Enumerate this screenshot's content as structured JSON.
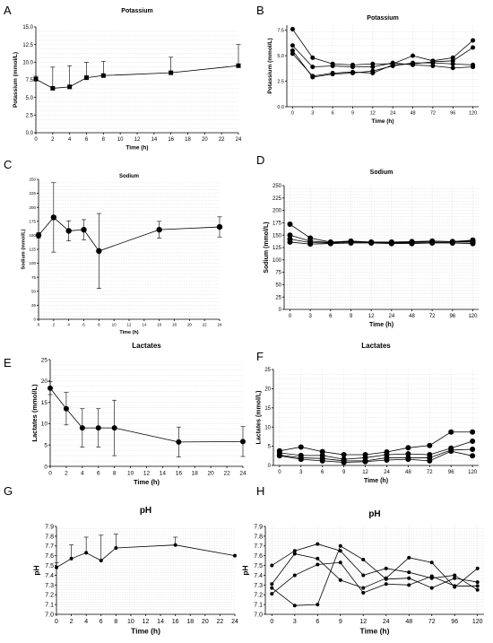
{
  "chart_data": [
    {
      "id": "A",
      "letter": "A",
      "type": "line",
      "title": "Potassium",
      "xlabel": "Time (h)",
      "ylabel": "Potassium (mmol/L)",
      "x_scale": "linear",
      "xlim": [
        0,
        24
      ],
      "x_ticks": [
        "0",
        "2",
        "4",
        "6",
        "8",
        "10",
        "12",
        "14",
        "16",
        "18",
        "20",
        "22",
        "24"
      ],
      "ylim": [
        0,
        15
      ],
      "y_ticks": [
        "0.0",
        "2.5",
        "5.0",
        "7.5",
        "10.0",
        "12.5",
        "15.0"
      ],
      "marker": "square",
      "grid": true,
      "series": [
        {
          "x": [
            0,
            2,
            4,
            6,
            8,
            16,
            24
          ],
          "y": [
            7.6,
            6.3,
            6.5,
            7.8,
            8.1,
            8.5,
            9.5
          ],
          "err": [
            0.4,
            3.0,
            3.0,
            2.2,
            2.0,
            2.2,
            3.0
          ]
        }
      ]
    },
    {
      "id": "B",
      "letter": "B",
      "type": "line",
      "title": "Potassium",
      "xlabel": "Time (h)",
      "ylabel": "Potassium (mmol/L)",
      "x_scale": "categorical",
      "categories": [
        "0",
        "3",
        "6",
        "9",
        "12",
        "24",
        "48",
        "72",
        "96",
        "120"
      ],
      "ylim": [
        0,
        8
      ],
      "y_ticks": [
        "0.0",
        "2.5",
        "5.0",
        "7.5"
      ],
      "marker": "circle",
      "grid": true,
      "series": [
        {
          "values": [
            7.6,
            4.8,
            4.2,
            4.1,
            4.2,
            4.2,
            5.0,
            4.5,
            4.8,
            6.5
          ]
        },
        {
          "values": [
            6.0,
            3.9,
            4.0,
            3.9,
            3.9,
            4.3,
            4.1,
            4.0,
            3.8,
            3.9
          ]
        },
        {
          "values": [
            5.5,
            2.9,
            3.2,
            3.3,
            3.5,
            4.0,
            4.3,
            4.3,
            4.2,
            4.1
          ]
        },
        {
          "values": [
            5.2,
            3.0,
            3.3,
            3.4,
            3.3,
            4.1,
            4.2,
            4.4,
            4.5,
            5.8
          ]
        }
      ]
    },
    {
      "id": "C",
      "letter": "C",
      "type": "line",
      "title": "Sodium",
      "xlabel": "Time (h)",
      "ylabel": "Sodium (mmol/L)",
      "x_scale": "linear",
      "xlim": [
        0,
        24
      ],
      "x_ticks": [
        "0",
        "2",
        "4",
        "6",
        "8",
        "10",
        "12",
        "14",
        "16",
        "18",
        "20",
        "22",
        "24"
      ],
      "ylim": [
        0,
        250
      ],
      "y_ticks": [
        "0",
        "25",
        "50",
        "75",
        "100",
        "125",
        "150",
        "175",
        "200",
        "225",
        "250"
      ],
      "marker": "circle",
      "grid": true,
      "series": [
        {
          "x": [
            0,
            2,
            4,
            6,
            8,
            16,
            24
          ],
          "y": [
            150,
            182,
            158,
            160,
            122,
            160,
            165
          ],
          "err": [
            5,
            62,
            18,
            18,
            67,
            15,
            18
          ]
        }
      ]
    },
    {
      "id": "D",
      "letter": "D",
      "type": "line",
      "title": "Sodium",
      "xlabel": "Time (h)",
      "ylabel": "Sodium (mmol/L)",
      "x_scale": "categorical",
      "categories": [
        "0",
        "3",
        "6",
        "9",
        "12",
        "24",
        "48",
        "72",
        "96",
        "120"
      ],
      "ylim": [
        0,
        250
      ],
      "y_ticks": [
        "0",
        "25",
        "50",
        "75",
        "100",
        "125",
        "150",
        "175",
        "200",
        "225",
        "250"
      ],
      "marker": "circle",
      "grid": true,
      "series": [
        {
          "values": [
            172,
            144,
            136,
            138,
            136,
            136,
            137,
            138,
            137,
            140
          ]
        },
        {
          "values": [
            150,
            138,
            135,
            137,
            135,
            135,
            136,
            137,
            137,
            138
          ]
        },
        {
          "values": [
            142,
            135,
            134,
            136,
            135,
            134,
            135,
            135,
            136,
            136
          ]
        },
        {
          "values": [
            136,
            132,
            133,
            134,
            134,
            133,
            133,
            134,
            134,
            133
          ]
        }
      ]
    },
    {
      "id": "E",
      "letter": "E",
      "type": "line",
      "title": "Lactates",
      "xlabel": "Time (h)",
      "ylabel": "Lactates (mmol/L)",
      "x_scale": "linear",
      "xlim": [
        0,
        24
      ],
      "x_ticks": [
        "0",
        "2",
        "4",
        "6",
        "8",
        "10",
        "12",
        "14",
        "16",
        "18",
        "20",
        "22",
        "24"
      ],
      "ylim": [
        0,
        25
      ],
      "y_ticks": [
        "0",
        "5",
        "10",
        "15",
        "20",
        "25"
      ],
      "marker": "circle",
      "grid": true,
      "series": [
        {
          "x": [
            0,
            2,
            4,
            6,
            8,
            16,
            24
          ],
          "y": [
            18.3,
            13.5,
            9.0,
            9.0,
            9.0,
            5.7,
            5.8
          ],
          "err": [
            1.5,
            3.8,
            4.5,
            4.5,
            6.5,
            3.5,
            3.5
          ]
        }
      ]
    },
    {
      "id": "F",
      "letter": "F",
      "type": "line",
      "title": "Lactates",
      "xlabel": "Time (h)",
      "ylabel": "Lactates (mmol/L)",
      "x_scale": "categorical",
      "categories": [
        "0",
        "3",
        "6",
        "9",
        "12",
        "24",
        "48",
        "72",
        "96",
        "120"
      ],
      "ylim": [
        0,
        25
      ],
      "y_ticks": [
        "0",
        "5",
        "10",
        "15",
        "20",
        "25"
      ],
      "marker": "circle",
      "grid": true,
      "series": [
        {
          "values": [
            3.8,
            4.8,
            3.6,
            2.8,
            2.8,
            3.5,
            4.6,
            5.2,
            8.7,
            8.7
          ]
        },
        {
          "values": [
            3.3,
            2.6,
            2.6,
            1.6,
            2.0,
            2.8,
            3.0,
            2.8,
            4.5,
            6.3
          ]
        },
        {
          "values": [
            2.7,
            2.0,
            1.8,
            1.2,
            1.2,
            2.0,
            2.0,
            2.0,
            4.0,
            4.2
          ]
        },
        {
          "values": [
            2.5,
            1.6,
            1.2,
            0.8,
            1.0,
            1.4,
            1.6,
            1.2,
            3.7,
            2.5
          ]
        }
      ]
    },
    {
      "id": "G",
      "letter": "G",
      "type": "line",
      "title": "pH",
      "xlabel": "Time (h)",
      "ylabel": "pH",
      "x_scale": "linear",
      "xlim": [
        0,
        24
      ],
      "x_ticks": [
        "0",
        "2",
        "4",
        "6",
        "8",
        "10",
        "12",
        "14",
        "16",
        "18",
        "20",
        "22",
        "24"
      ],
      "ylim": [
        7.0,
        7.9
      ],
      "y_ticks": [
        "7.0",
        "7.1",
        "7.2",
        "7.3",
        "7.4",
        "7.5",
        "7.6",
        "7.7",
        "7.8",
        "7.9"
      ],
      "marker": "circle",
      "grid": true,
      "series": [
        {
          "x": [
            0,
            2,
            4,
            6,
            8,
            16,
            24
          ],
          "y": [
            7.48,
            7.57,
            7.63,
            7.55,
            7.68,
            7.71,
            7.6
          ],
          "err": [
            0.05,
            0.14,
            0.16,
            0.26,
            0.14,
            0.08,
            0
          ]
        }
      ]
    },
    {
      "id": "H",
      "letter": "H",
      "type": "line",
      "title": "pH",
      "xlabel": "Time (h)",
      "ylabel": "pH",
      "x_scale": "categorical",
      "categories": [
        "0",
        "3",
        "6",
        "9",
        "12",
        "24",
        "48",
        "72",
        "96",
        "120"
      ],
      "ylim": [
        7.0,
        7.9
      ],
      "y_ticks": [
        "7.0",
        "7.1",
        "7.2",
        "7.3",
        "7.4",
        "7.5",
        "7.6",
        "7.7",
        "7.8",
        "7.9"
      ],
      "marker": "circle",
      "grid": true,
      "series": [
        {
          "values": [
            7.5,
            7.65,
            7.72,
            7.65,
            7.4,
            7.47,
            7.43,
            7.37,
            7.4,
            7.25
          ]
        },
        {
          "values": [
            7.31,
            7.62,
            7.57,
            7.35,
            7.27,
            7.37,
            7.58,
            7.53,
            7.28,
            7.47
          ]
        },
        {
          "values": [
            7.27,
            7.09,
            7.1,
            7.7,
            7.56,
            7.36,
            7.37,
            7.27,
            7.37,
            7.33
          ]
        },
        {
          "values": [
            7.21,
            7.4,
            7.51,
            7.53,
            7.22,
            7.31,
            7.3,
            7.39,
            7.29,
            7.29
          ]
        }
      ]
    }
  ]
}
